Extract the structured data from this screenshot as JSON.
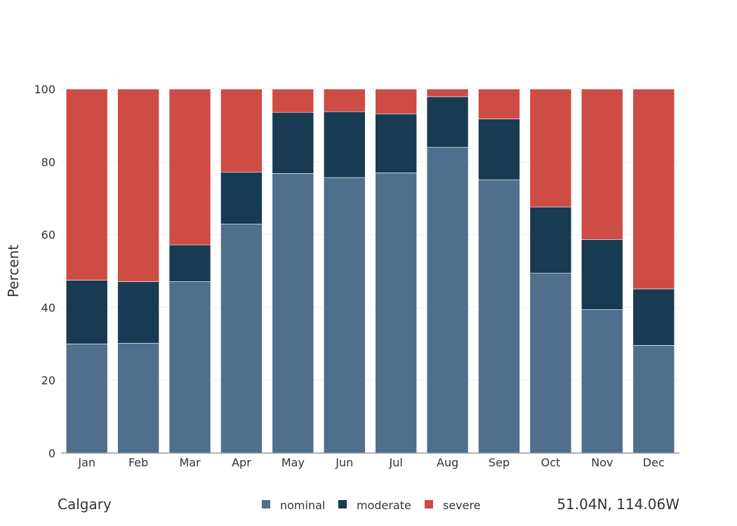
{
  "chart_data": {
    "type": "bar",
    "stacked": true,
    "categories": [
      "Jan",
      "Feb",
      "Mar",
      "Apr",
      "May",
      "Jun",
      "Jul",
      "Aug",
      "Sep",
      "Oct",
      "Nov",
      "Dec"
    ],
    "series": [
      {
        "name": "nominal",
        "color": "#4f6f8c",
        "values": [
          30,
          30.2,
          47.1,
          62.9,
          76.8,
          75.7,
          77.0,
          84.0,
          75.1,
          49.4,
          39.4,
          29.6
        ]
      },
      {
        "name": "moderate",
        "color": "#183a52",
        "values": [
          17.5,
          16.9,
          10.1,
          14.3,
          16.8,
          18.1,
          16.2,
          13.9,
          16.7,
          18.2,
          19.3,
          15.5
        ]
      },
      {
        "name": "severe",
        "color": "#cd4c44",
        "values": [
          52.5,
          52.9,
          42.8,
          22.8,
          6.4,
          6.2,
          6.8,
          2.1,
          8.2,
          32.4,
          41.3,
          54.9
        ]
      }
    ],
    "ylabel": "Percent",
    "xlabel": "",
    "ylim": [
      0,
      100
    ],
    "yticks": [
      0,
      20,
      40,
      60,
      80,
      100
    ],
    "grid": true,
    "legend_position": "bottom-center"
  },
  "footer": {
    "location": "Calgary",
    "coordinates": "51.04N, 114.06W"
  }
}
